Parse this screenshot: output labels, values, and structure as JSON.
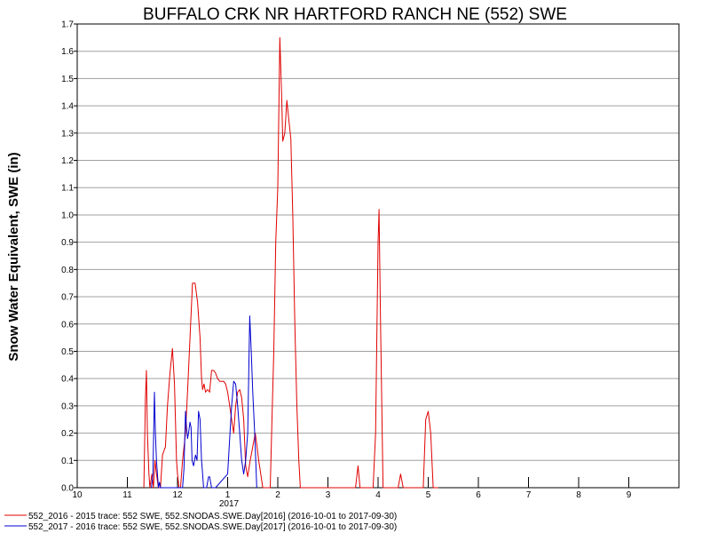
{
  "chart_data": {
    "type": "line",
    "title": "BUFFALO CRK NR HARTFORD RANCH NE (552) SWE",
    "ylabel": "Snow Water Equivalent, SWE (in)",
    "xlabel": "",
    "year_label": "2017",
    "ylim": [
      0,
      1.7
    ],
    "xlim": [
      0,
      12
    ],
    "grid": true,
    "y_ticks": [
      0.0,
      0.1,
      0.2,
      0.3,
      0.4,
      0.5,
      0.6,
      0.7,
      0.8,
      0.9,
      1.0,
      1.1,
      1.2,
      1.3,
      1.4,
      1.5,
      1.6,
      1.7
    ],
    "y_tick_labels": [
      "0.0",
      "0.1",
      "0.2",
      "0.3",
      "0.4",
      "0.5",
      "0.6",
      "0.7",
      "0.8",
      "0.9",
      "1.0",
      "1.1",
      "1.2",
      "1.3",
      "1.4",
      "1.5",
      "1.6",
      "1.7"
    ],
    "x_ticks": [
      0,
      1,
      2,
      3,
      4,
      5,
      6,
      7,
      8,
      9,
      10,
      11
    ],
    "x_tick_labels": [
      "10",
      "11",
      "12",
      "1",
      "2",
      "3",
      "4",
      "5",
      "6",
      "7",
      "8",
      "9"
    ],
    "legend_position": "bottom-left",
    "series": [
      {
        "name": "552_2016 - 2015 trace: 552 SWE, 552.SNODAS.SWE.Day[2016] (2016-10-01 to 2017-09-30)",
        "color": "#e00000",
        "x": [
          1.33,
          1.36,
          1.38,
          1.4,
          1.43,
          1.45,
          1.49,
          1.52,
          1.55,
          1.58,
          1.62,
          1.66,
          1.7,
          1.76,
          1.8,
          1.85,
          1.9,
          1.94,
          1.98,
          2.0,
          2.03,
          2.06,
          2.1,
          2.16,
          2.2,
          2.25,
          2.3,
          2.35,
          2.4,
          2.45,
          2.48,
          2.5,
          2.53,
          2.56,
          2.6,
          2.64,
          2.68,
          2.72,
          2.76,
          2.8,
          2.84,
          2.88,
          2.92,
          2.96,
          3.0,
          3.04,
          3.08,
          3.12,
          3.16,
          3.2,
          3.24,
          3.28,
          3.32,
          3.36,
          3.4,
          3.45,
          3.5,
          3.55,
          3.58,
          3.62,
          3.66,
          3.7,
          3.75,
          3.8,
          3.85,
          3.88,
          3.92,
          3.96,
          4.0,
          4.04,
          4.08,
          4.1,
          4.14,
          4.18,
          4.22,
          4.26,
          4.3,
          4.34,
          4.38,
          4.42,
          4.45,
          4.5,
          5.0,
          5.55,
          5.6,
          5.64,
          5.68,
          5.72,
          5.76,
          5.8,
          5.84,
          5.88,
          5.9,
          5.95,
          6.0,
          6.02,
          6.05,
          6.1,
          6.4,
          6.45,
          6.5,
          6.55,
          6.62,
          6.67,
          6.72,
          6.8,
          6.85,
          6.9,
          6.95,
          7.0,
          7.05,
          7.1,
          7.15,
          7.2
        ],
        "y": [
          0.0,
          0.32,
          0.43,
          0.2,
          0.05,
          0.0,
          0.05,
          0.0,
          0.1,
          0.05,
          0.0,
          0.0,
          0.12,
          0.15,
          0.3,
          0.42,
          0.51,
          0.38,
          0.1,
          0.05,
          0.0,
          0.0,
          0.1,
          0.2,
          0.35,
          0.55,
          0.75,
          0.75,
          0.68,
          0.55,
          0.4,
          0.36,
          0.38,
          0.35,
          0.36,
          0.35,
          0.43,
          0.43,
          0.42,
          0.4,
          0.39,
          0.39,
          0.39,
          0.38,
          0.35,
          0.3,
          0.25,
          0.2,
          0.3,
          0.35,
          0.36,
          0.33,
          0.25,
          0.08,
          0.04,
          0.1,
          0.15,
          0.2,
          0.16,
          0.1,
          0.05,
          0.0,
          0.0,
          0.0,
          0.0,
          0.22,
          0.5,
          0.9,
          1.1,
          1.65,
          1.42,
          1.27,
          1.3,
          1.42,
          1.35,
          1.28,
          1.0,
          0.6,
          0.3,
          0.1,
          0.0,
          0.0,
          0.0,
          0.0,
          0.08,
          0.0,
          0.0,
          0.0,
          0.0,
          0.0,
          0.0,
          0.0,
          0.0,
          0.2,
          0.9,
          1.02,
          0.6,
          0.0,
          0.0,
          0.05,
          0.0,
          0.0,
          0.0,
          0.0,
          0.0,
          0.0,
          0.0,
          0.0,
          0.25,
          0.28,
          0.2,
          0.0,
          0.0,
          0.0
        ]
      },
      {
        "name": "552_2017 - 2016 trace: 552 SWE, 552.SNODAS.SWE.Day[2017] (2016-10-01 to 2017-09-30)",
        "color": "#0000d0",
        "x": [
          1.48,
          1.51,
          1.54,
          1.56,
          1.58,
          1.6,
          1.62,
          1.64,
          1.66,
          1.7,
          2.1,
          2.13,
          2.16,
          2.18,
          2.2,
          2.22,
          2.25,
          2.27,
          2.29,
          2.32,
          2.36,
          2.39,
          2.42,
          2.45,
          2.48,
          2.5,
          2.52,
          2.54,
          2.56,
          2.58,
          2.6,
          2.62,
          2.64,
          2.66,
          2.68,
          2.7,
          2.72,
          2.74,
          2.76,
          3.0,
          3.04,
          3.08,
          3.12,
          3.16,
          3.2,
          3.24,
          3.28,
          3.32,
          3.36,
          3.4,
          3.44,
          3.47,
          3.5,
          3.54,
          3.58
        ],
        "y": [
          0.0,
          0.05,
          0.35,
          0.2,
          0.1,
          0.05,
          0.0,
          0.02,
          0.0,
          0.0,
          0.0,
          0.07,
          0.28,
          0.22,
          0.18,
          0.2,
          0.24,
          0.22,
          0.1,
          0.08,
          0.12,
          0.1,
          0.28,
          0.25,
          0.1,
          0.05,
          0.0,
          0.0,
          0.0,
          0.0,
          0.02,
          0.04,
          0.04,
          0.02,
          0.0,
          0.0,
          0.0,
          0.0,
          0.0,
          0.05,
          0.18,
          0.3,
          0.39,
          0.38,
          0.3,
          0.2,
          0.1,
          0.05,
          0.1,
          0.2,
          0.63,
          0.5,
          0.35,
          0.2,
          0.0
        ]
      }
    ]
  }
}
